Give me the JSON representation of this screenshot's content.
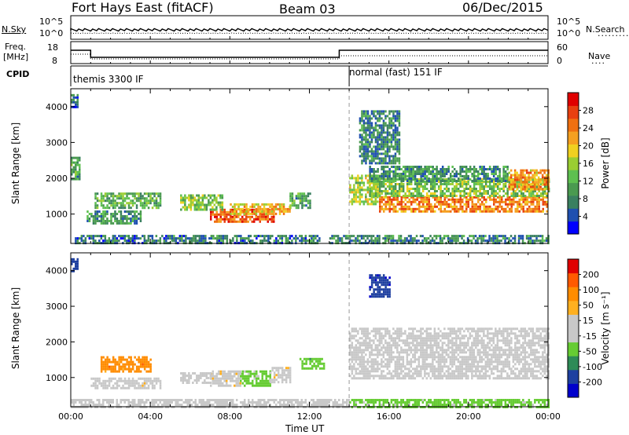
{
  "header": {
    "station": "Fort Hays East (fitACF)",
    "beam": "Beam 03",
    "date": "06/Dec/2015"
  },
  "top_panels": {
    "nsky_label": "N.Sky",
    "nsky_ticks": [
      "10^5",
      "10^0"
    ],
    "nsearch_label": "N.Search",
    "nsearch_ticks": [
      "10^5",
      "10^0"
    ],
    "freq_label_1": "Freq.",
    "freq_label_2": "[MHz]",
    "freq_ticks": [
      "18",
      "8"
    ],
    "nave_label": "Nave",
    "nave_ticks": [
      "60",
      "0"
    ],
    "cpid_label": "CPID",
    "cpid_modes": [
      {
        "text": "themis 3300 IF",
        "start_hour": 0
      },
      {
        "text": "normal (fast) 151 IF",
        "start_hour": 14
      }
    ]
  },
  "colors": {
    "power": [
      "#0000ff",
      "#1f50b0",
      "#3a8060",
      "#4a9a50",
      "#5ec050",
      "#9acd32",
      "#f0d020",
      "#f5a020",
      "#f07010",
      "#e84010",
      "#e00000"
    ],
    "velocity": [
      "#e00000",
      "#ff5a00",
      "#ff8c00",
      "#ffb020",
      "#c8c8c8",
      "#c8c8c8",
      "#66cc33",
      "#2e8b57",
      "#1e40a0",
      "#0000cc"
    ]
  },
  "chart_data": [
    {
      "type": "heatmap",
      "name": "power",
      "ylabel": "Slant Range [km]",
      "xlabel": "Time UT",
      "x_ticks": [
        "00:00",
        "04:00",
        "08:00",
        "12:00",
        "16:00",
        "20:00",
        "00:00"
      ],
      "x_range_hours": [
        0,
        24
      ],
      "ylim": [
        180,
        4500
      ],
      "y_ticks": [
        1000,
        2000,
        3000,
        4000
      ],
      "colorbar_label": "Power [dB]",
      "colorbar_range": [
        0,
        32
      ],
      "colorbar_ticks": [
        4,
        8,
        12,
        16,
        20,
        24,
        28
      ],
      "regions": [
        {
          "t0": 7.0,
          "t1": 10.2,
          "r0": 780,
          "r1": 1150,
          "level": 26
        },
        {
          "t0": 8.0,
          "t1": 11.0,
          "r0": 1000,
          "r1": 1300,
          "level": 20
        },
        {
          "t0": 5.5,
          "t1": 7.6,
          "r0": 1150,
          "r1": 1550,
          "level": 14
        },
        {
          "t0": 1.2,
          "t1": 4.5,
          "r0": 1150,
          "r1": 1600,
          "level": 12
        },
        {
          "t0": 0.8,
          "t1": 3.5,
          "r0": 750,
          "r1": 1100,
          "level": 9
        },
        {
          "t0": 0.2,
          "t1": 12.5,
          "r0": 200,
          "r1": 420,
          "level": 7
        },
        {
          "t0": 11.0,
          "t1": 12.0,
          "r0": 1200,
          "r1": 1600,
          "level": 10
        },
        {
          "t0": 14.0,
          "t1": 15.5,
          "r0": 1250,
          "r1": 2100,
          "level": 16
        },
        {
          "t0": 15.5,
          "t1": 24.0,
          "r0": 1100,
          "r1": 1500,
          "level": 24
        },
        {
          "t0": 15.0,
          "t1": 24.0,
          "r0": 1500,
          "r1": 2000,
          "level": 14
        },
        {
          "t0": 15.0,
          "t1": 22.0,
          "r0": 1950,
          "r1": 2350,
          "level": 9
        },
        {
          "t0": 22.0,
          "t1": 24.0,
          "r0": 1700,
          "r1": 2250,
          "level": 22
        },
        {
          "t0": 14.5,
          "t1": 16.5,
          "r0": 2400,
          "r1": 3900,
          "level": 8
        },
        {
          "t0": 13.0,
          "t1": 24.0,
          "r0": 200,
          "r1": 420,
          "level": 8
        },
        {
          "t0": 0.0,
          "t1": 0.4,
          "r0": 2000,
          "r1": 2600,
          "level": 10
        },
        {
          "t0": 0.0,
          "t1": 0.3,
          "r0": 4000,
          "r1": 4350,
          "level": 6
        }
      ]
    },
    {
      "type": "heatmap",
      "name": "velocity",
      "ylabel": "Slant Range [km]",
      "xlabel": "Time UT",
      "x_ticks": [
        "00:00",
        "04:00",
        "08:00",
        "12:00",
        "16:00",
        "20:00",
        "00:00"
      ],
      "x_range_hours": [
        0,
        24
      ],
      "ylim": [
        180,
        4500
      ],
      "y_ticks": [
        1000,
        2000,
        3000,
        4000
      ],
      "colorbar_label": "Velocity [m s⁻¹]",
      "colorbar_range": [
        -250,
        250
      ],
      "colorbar_ticks": [
        "200",
        "100",
        "50",
        "15",
        "-15",
        "-50",
        "-100",
        "-200"
      ],
      "regions": [
        {
          "t0": 8.5,
          "t1": 10.0,
          "r0": 750,
          "r1": 1200,
          "level": -60
        },
        {
          "t0": 7.0,
          "t1": 8.5,
          "r0": 800,
          "r1": 1200,
          "level": 40
        },
        {
          "t0": 10.0,
          "t1": 11.0,
          "r0": 850,
          "r1": 1300,
          "level": 35
        },
        {
          "t0": 5.5,
          "t1": 7.0,
          "r0": 850,
          "r1": 1150,
          "level": 0
        },
        {
          "t0": 1.0,
          "t1": 4.5,
          "r0": 700,
          "r1": 1000,
          "level": 30
        },
        {
          "t0": 1.5,
          "t1": 4.0,
          "r0": 1150,
          "r1": 1600,
          "level": 120
        },
        {
          "t0": 11.5,
          "t1": 12.7,
          "r0": 1250,
          "r1": 1550,
          "level": -70
        },
        {
          "t0": 14.0,
          "t1": 24.0,
          "r0": 1000,
          "r1": 2400,
          "level": 0
        },
        {
          "t0": 0.0,
          "t1": 14.0,
          "r0": 200,
          "r1": 400,
          "level": 0
        },
        {
          "t0": 14.0,
          "t1": 24.0,
          "r0": 200,
          "r1": 400,
          "level": -60
        },
        {
          "t0": 0.0,
          "t1": 0.3,
          "r0": 4000,
          "r1": 4350,
          "level": -200
        },
        {
          "t0": 15.0,
          "t1": 16.0,
          "r0": 3300,
          "r1": 3900,
          "level": -200
        }
      ]
    }
  ],
  "scan_boundary_hour": 14
}
